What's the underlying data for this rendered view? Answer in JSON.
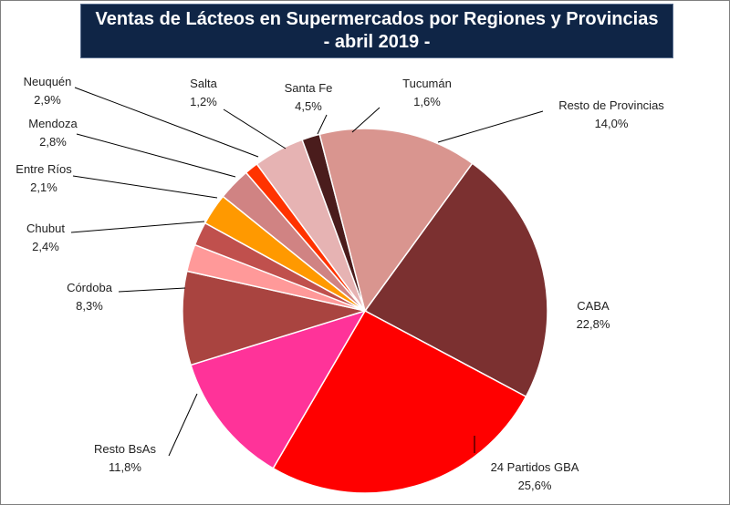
{
  "chart_data": {
    "type": "pie",
    "title_line1": "Ventas de Lácteos en Supermercados por Regiones y Provincias",
    "title_line2": "- abril 2019 -",
    "slices": [
      {
        "name": "CABA",
        "value": 22.8,
        "label": "22,8%",
        "color": "#7b3030"
      },
      {
        "name": "24 Partidos GBA",
        "value": 25.6,
        "label": "25,6%",
        "color": "#ff0000"
      },
      {
        "name": "Resto BsAs",
        "value": 11.8,
        "label": "11,8%",
        "color": "#ff3399"
      },
      {
        "name": "Córdoba",
        "value": 8.3,
        "label": "8,3%",
        "color": "#a94440"
      },
      {
        "name": "Chubut",
        "value": 2.4,
        "label": "2,4%",
        "color": "#ff9999"
      },
      {
        "name": "Entre Ríos",
        "value": 2.1,
        "label": "2,1%",
        "color": "#c0504d"
      },
      {
        "name": "Mendoza",
        "value": 2.8,
        "label": "2,8%",
        "color": "#ff9900"
      },
      {
        "name": "Neuquén",
        "value": 2.9,
        "label": "2,9%",
        "color": "#d08383"
      },
      {
        "name": "Salta",
        "value": 1.2,
        "label": "1,2%",
        "color": "#ff3300"
      },
      {
        "name": "Santa Fe",
        "value": 4.5,
        "label": "4,5%",
        "color": "#e6b3b3"
      },
      {
        "name": "Tucumán",
        "value": 1.6,
        "label": "1,6%",
        "color": "#4a1c1c"
      },
      {
        "name": "Resto de Provincias",
        "value": 14.0,
        "label": "14,0%",
        "color": "#d9958f"
      }
    ]
  }
}
